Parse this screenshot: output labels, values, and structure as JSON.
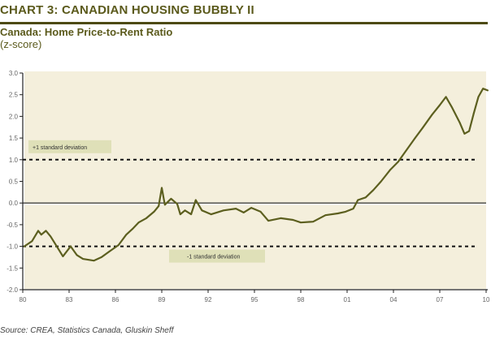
{
  "header": {
    "title": "CHART 3: CANADIAN HOUSING BUBBLY II",
    "subtitle": "Canada:  Home Price-to-Rent Ratio",
    "unit": "(z-score)"
  },
  "source": "Source: CREA, Statistics Canada, Gluskin Sheff",
  "colors": {
    "title": "#5b5a1c",
    "rule": "#4d4a12",
    "plot_background": "#f4efdc",
    "line": "#5c5f1f",
    "annotation_box": "#dfe0b8"
  },
  "chart_data": {
    "type": "line",
    "title": "Canada: Home Price-to-Rent Ratio",
    "xlabel": "",
    "ylabel": "z-score",
    "xlim": [
      1980,
      2010
    ],
    "ylim": [
      -2.0,
      3.0
    ],
    "grid": false,
    "legend": "none",
    "x_ticks": [
      {
        "value": 1980,
        "label": "80"
      },
      {
        "value": 1983,
        "label": "83"
      },
      {
        "value": 1986,
        "label": "86"
      },
      {
        "value": 1989,
        "label": "89"
      },
      {
        "value": 1992,
        "label": "92"
      },
      {
        "value": 1995,
        "label": "95"
      },
      {
        "value": 1998,
        "label": "98"
      },
      {
        "value": 2001,
        "label": "01"
      },
      {
        "value": 2004,
        "label": "04"
      },
      {
        "value": 2007,
        "label": "07"
      },
      {
        "value": 2010,
        "label": "10"
      }
    ],
    "y_ticks": [
      {
        "value": 3.0,
        "label": "3.0"
      },
      {
        "value": 2.5,
        "label": "2.5"
      },
      {
        "value": 2.0,
        "label": "2.0"
      },
      {
        "value": 1.5,
        "label": "1.5"
      },
      {
        "value": 1.0,
        "label": "1.0"
      },
      {
        "value": 0.5,
        "label": "0.5"
      },
      {
        "value": 0.0,
        "label": "0.0"
      },
      {
        "value": -0.5,
        "label": "-0.5"
      },
      {
        "value": -1.0,
        "label": "-1.0"
      },
      {
        "value": -1.5,
        "label": "-1.5"
      },
      {
        "value": -2.0,
        "label": "-2.0"
      }
    ],
    "reference_lines": [
      {
        "value": 1.0,
        "style": "dashed",
        "label": "+1 standard deviation"
      },
      {
        "value": 0.0,
        "style": "solid",
        "label": ""
      },
      {
        "value": -1.0,
        "style": "dashed",
        "label": "-1 standard deviation"
      }
    ],
    "series": [
      {
        "name": "Home Price-to-Rent Ratio (z-score)",
        "x": [
          1980.1,
          1980.6,
          1981.0,
          1981.2,
          1981.5,
          1981.8,
          1982.2,
          1982.6,
          1983.1,
          1983.5,
          1983.9,
          1984.6,
          1985.1,
          1985.6,
          1986.2,
          1986.7,
          1987.1,
          1987.5,
          1988.0,
          1988.5,
          1988.8,
          1989.0,
          1989.2,
          1989.6,
          1990.0,
          1990.2,
          1990.5,
          1990.9,
          1991.2,
          1991.6,
          1992.2,
          1993.0,
          1993.8,
          1994.3,
          1994.8,
          1995.4,
          1995.9,
          1996.7,
          1997.5,
          1998.0,
          1998.8,
          1999.6,
          2000.4,
          2000.9,
          2001.4,
          2001.7,
          2002.2,
          2002.7,
          2003.2,
          2003.8,
          2004.3,
          2004.8,
          2005.4,
          2005.9,
          2006.5,
          2007.0,
          2007.4,
          2007.8,
          2008.3,
          2008.6,
          2008.9,
          2009.2,
          2009.5,
          2009.8,
          2010.1
        ],
        "values": [
          -1.0,
          -0.88,
          -0.64,
          -0.73,
          -0.64,
          -0.77,
          -1.0,
          -1.23,
          -1.0,
          -1.2,
          -1.29,
          -1.33,
          -1.25,
          -1.12,
          -0.97,
          -0.73,
          -0.6,
          -0.45,
          -0.35,
          -0.2,
          -0.07,
          0.35,
          -0.04,
          0.1,
          -0.02,
          -0.26,
          -0.17,
          -0.26,
          0.07,
          -0.17,
          -0.26,
          -0.17,
          -0.13,
          -0.22,
          -0.11,
          -0.2,
          -0.41,
          -0.35,
          -0.39,
          -0.45,
          -0.43,
          -0.28,
          -0.24,
          -0.2,
          -0.13,
          0.07,
          0.13,
          0.3,
          0.5,
          0.77,
          0.95,
          1.2,
          1.5,
          1.74,
          2.04,
          2.26,
          2.45,
          2.2,
          1.85,
          1.6,
          1.66,
          2.07,
          2.45,
          2.64,
          2.6
        ]
      }
    ]
  }
}
